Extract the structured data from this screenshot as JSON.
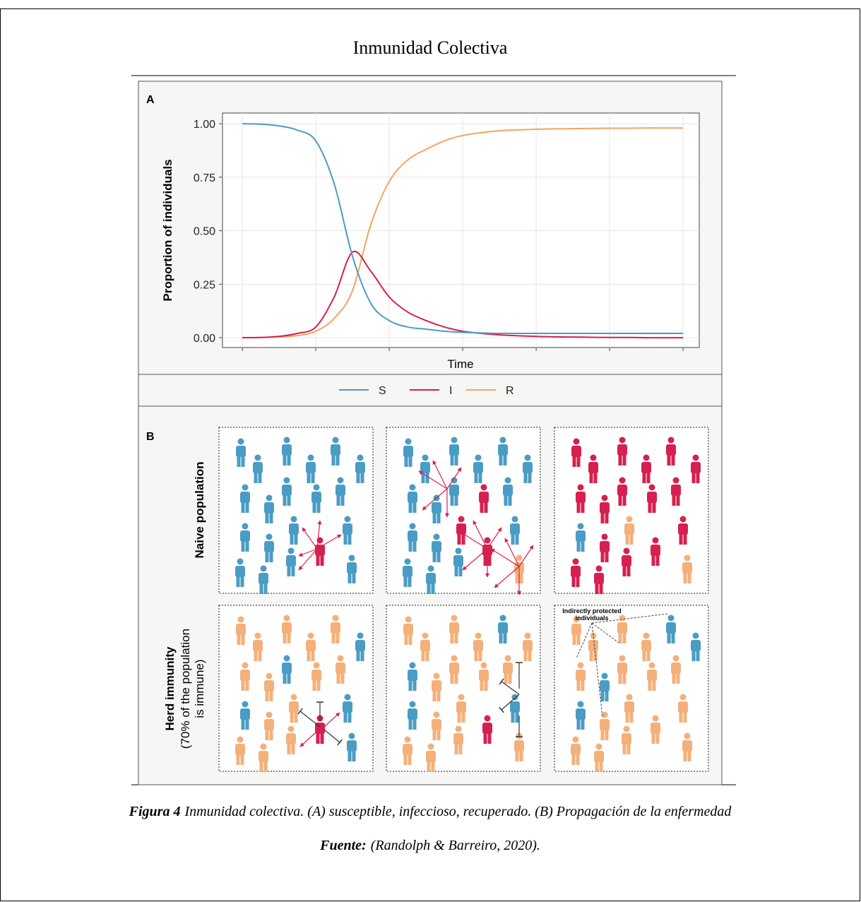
{
  "title": "Inmunidad Colectiva",
  "chart_data": {
    "type": "line",
    "panel_label": "A",
    "y_label": "Proportion of individuals",
    "x_label": "Time",
    "x": [
      0,
      2.5,
      5,
      7.5,
      10,
      12.5,
      15,
      17.5,
      20,
      22.5,
      25,
      27.5,
      30,
      32.5,
      35,
      37.5,
      40,
      42.5,
      45,
      47.5,
      50,
      52.5,
      55,
      57.5,
      60
    ],
    "xlim": [
      -2.7,
      62.2
    ],
    "xticks": [
      0,
      10,
      20,
      30,
      40,
      50,
      60
    ],
    "xtick_labels": false,
    "ylim": [
      -0.046,
      1.05
    ],
    "yticks": [
      {
        "value": 0,
        "label": "0.00"
      },
      {
        "value": 0.25,
        "label": "0.25"
      },
      {
        "value": 0.5,
        "label": "0.50"
      },
      {
        "value": 0.75,
        "label": "0.75"
      },
      {
        "value": 1,
        "label": "1.00"
      }
    ],
    "grid": true,
    "legend": "bottom",
    "series": [
      {
        "name": "S",
        "color": "#4a9cc4",
        "values": [
          1.0,
          0.998,
          0.99,
          0.97,
          0.92,
          0.72,
          0.38,
          0.16,
          0.08,
          0.05,
          0.04,
          0.03,
          0.025,
          0.022,
          0.02,
          0.02,
          0.02,
          0.02,
          0.02,
          0.02,
          0.02,
          0.02,
          0.02,
          0.02,
          0.02
        ]
      },
      {
        "name": "I",
        "color": "#d6204f",
        "values": [
          0.0,
          0.001,
          0.006,
          0.02,
          0.05,
          0.19,
          0.4,
          0.31,
          0.19,
          0.12,
          0.08,
          0.05,
          0.03,
          0.02,
          0.013,
          0.009,
          0.006,
          0.004,
          0.003,
          0.002,
          0.001,
          0.001,
          0.0,
          0.0,
          0.0
        ]
      },
      {
        "name": "R",
        "color": "#f4a460",
        "values": [
          0.0,
          0.001,
          0.004,
          0.01,
          0.03,
          0.09,
          0.22,
          0.53,
          0.73,
          0.83,
          0.88,
          0.92,
          0.945,
          0.958,
          0.967,
          0.971,
          0.974,
          0.976,
          0.977,
          0.978,
          0.979,
          0.979,
          0.98,
          0.98,
          0.98
        ]
      }
    ]
  },
  "panel_b": {
    "panel_label": "B",
    "rows": [
      {
        "label": "Naive population"
      },
      {
        "label": "Herd immunity",
        "sublabel": [
          "(70% of the population",
          "is immune)"
        ]
      }
    ],
    "annotation": [
      "Indirectly protected",
      "individuals"
    ]
  },
  "caption": {
    "figure_label": "Figura 4",
    "figure_text": "Inmunidad colectiva. (A) susceptible, infeccioso, recuperado. (B) Propagación de la enfermedad",
    "source_label": "Fuente:",
    "source_text": "(Randolph & Barreiro, 2020)."
  }
}
